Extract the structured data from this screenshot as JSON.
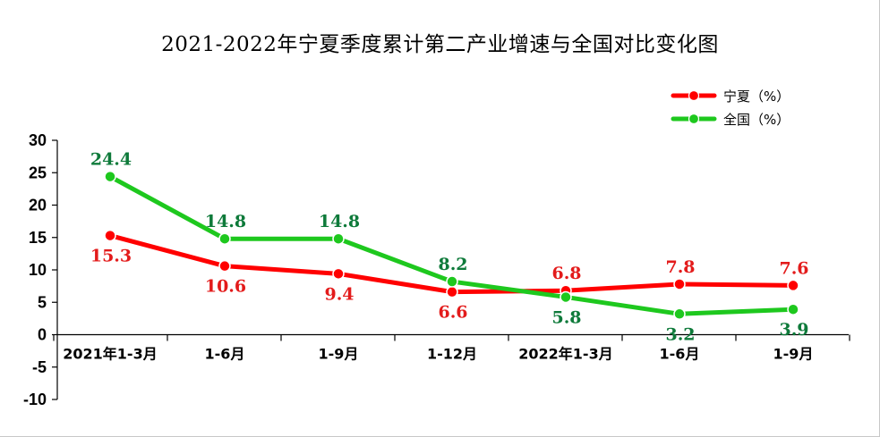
{
  "chart_data": {
    "type": "line",
    "title": "2021-2022年宁夏季度累计第二产业增速与全国对比变化图",
    "categories": [
      "2021年1-3月",
      "1-6月",
      "1-9月",
      "1-12月",
      "2022年1-3月",
      "1-6月",
      "1-9月"
    ],
    "series": [
      {
        "name": "宁夏（%）",
        "color": "#ff0000",
        "label_color": "#e31b1b",
        "values": [
          15.3,
          10.6,
          9.4,
          6.6,
          6.8,
          7.8,
          7.6
        ],
        "label_positions": [
          "below",
          "below",
          "below",
          "below",
          "above",
          "above",
          "above"
        ]
      },
      {
        "name": "全国（%）",
        "color": "#1ec81e",
        "label_color": "#0e7a3a",
        "values": [
          24.4,
          14.8,
          14.8,
          8.2,
          5.8,
          3.2,
          3.9
        ],
        "label_positions": [
          "above",
          "above",
          "above",
          "above",
          "below",
          "below",
          "below"
        ]
      }
    ],
    "ylim": [
      -10,
      30
    ],
    "yticks": [
      30,
      25,
      20,
      15,
      10,
      5,
      0,
      -5,
      -10
    ],
    "legend": "top-right",
    "grid": false
  }
}
